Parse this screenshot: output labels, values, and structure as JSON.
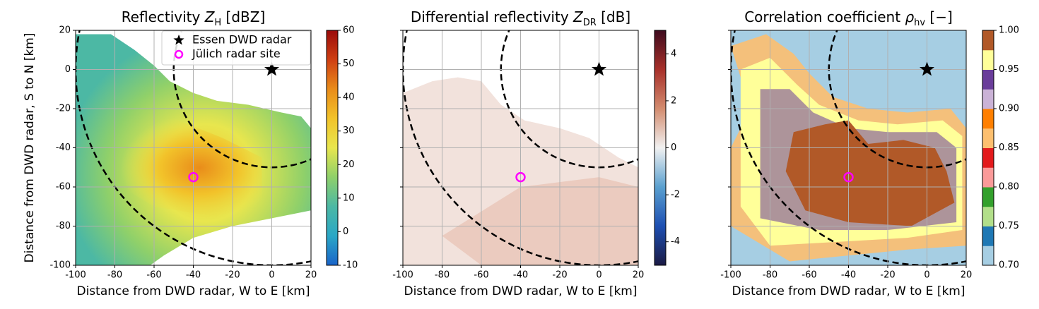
{
  "chart_data": [
    {
      "type": "radar-field",
      "title_parts": [
        "Reflectivity ",
        "Z",
        "H",
        " [dBZ]"
      ],
      "xlabel": "Distance from DWD radar, W to E [km]",
      "ylabel": "Distance from DWD radar, S to N [km]",
      "xlim": [
        -100,
        20
      ],
      "ylim": [
        -100,
        20
      ],
      "xticks": [
        -100,
        -80,
        -60,
        -40,
        -20,
        0,
        20
      ],
      "yticks": [
        -100,
        -80,
        -60,
        -40,
        -20,
        0,
        20
      ],
      "show_ytick_labels": true,
      "grid": true,
      "range_rings": [
        50,
        100
      ],
      "series": [
        {
          "name": "Essen DWD radar",
          "marker": "star",
          "color": "#000000",
          "x": [
            0
          ],
          "y": [
            0
          ]
        },
        {
          "name": "Jülich radar site",
          "marker": "circle",
          "color": "#ff00ff",
          "x": [
            -40
          ],
          "y": [
            -55
          ]
        }
      ],
      "legend": "upper right",
      "colorbar": {
        "lim": [
          -10,
          60
        ],
        "ticks": [
          -10,
          0,
          10,
          20,
          30,
          40,
          50,
          60
        ],
        "colors": [
          "#1a64c9",
          "#2aa7c6",
          "#4cb8a4",
          "#8fd06a",
          "#e8e64e",
          "#f2c32a",
          "#e98c1a",
          "#cf3f12",
          "#9a0b0b"
        ]
      }
    },
    {
      "type": "radar-field",
      "title_parts": [
        "Differential reflectivity ",
        "Z",
        "DR",
        " [dB]"
      ],
      "xlabel": "Distance from DWD radar, W to E [km]",
      "xlim": [
        -100,
        20
      ],
      "ylim": [
        -100,
        20
      ],
      "xticks": [
        -100,
        -80,
        -60,
        -40,
        -20,
        0,
        20
      ],
      "yticks": [
        -100,
        -80,
        -60,
        -40,
        -20,
        0,
        20
      ],
      "show_ytick_labels": false,
      "grid": true,
      "range_rings": [
        50,
        100
      ],
      "series": [
        {
          "marker": "star",
          "color": "#000000",
          "x": [
            0
          ],
          "y": [
            0
          ]
        },
        {
          "marker": "circle",
          "color": "#ff00ff",
          "x": [
            -40
          ],
          "y": [
            -55
          ]
        }
      ],
      "colorbar": {
        "lim": [
          -5,
          5
        ],
        "ticks": [
          -4,
          -2,
          0,
          2,
          4
        ],
        "colors": [
          "#1b1a44",
          "#1d4fb2",
          "#5aa0cf",
          "#f1f1f1",
          "#d38c6f",
          "#a8302a",
          "#3e0b1e"
        ]
      }
    },
    {
      "type": "radar-field",
      "title_parts": [
        "Correlation coefficient ",
        "ρ",
        "hv",
        " [−]"
      ],
      "xlabel": "Distance from DWD radar, W to E [km]",
      "xlim": [
        -100,
        20
      ],
      "ylim": [
        -100,
        20
      ],
      "xticks": [
        -100,
        -80,
        -60,
        -40,
        -20,
        0,
        20
      ],
      "yticks": [
        -100,
        -80,
        -60,
        -40,
        -20,
        0,
        20
      ],
      "show_ytick_labels": false,
      "grid": true,
      "range_rings": [
        50,
        100
      ],
      "series": [
        {
          "marker": "star",
          "color": "#000000",
          "x": [
            0
          ],
          "y": [
            0
          ]
        },
        {
          "marker": "circle",
          "color": "#ff00ff",
          "x": [
            -40
          ],
          "y": [
            -55
          ]
        }
      ],
      "colorbar": {
        "lim": [
          0.7,
          1.0
        ],
        "discrete": true,
        "ticks": [
          {
            "value": 0.7,
            "label": "0.70"
          },
          {
            "value": 0.75,
            "label": "0.75"
          },
          {
            "value": 0.8,
            "label": "0.80"
          },
          {
            "value": 0.85,
            "label": "0.85"
          },
          {
            "value": 0.9,
            "label": "0.90"
          },
          {
            "value": 0.95,
            "label": "0.95"
          },
          {
            "value": 1.0,
            "label": "1.00"
          }
        ],
        "colors": [
          "#a6cee3",
          "#1f78b4",
          "#b2df8a",
          "#33a02c",
          "#fb9a99",
          "#e31a1c",
          "#fdbf6f",
          "#ff7f00",
          "#cab2d6",
          "#6a3d9a",
          "#ffff99",
          "#b15928"
        ]
      }
    }
  ]
}
